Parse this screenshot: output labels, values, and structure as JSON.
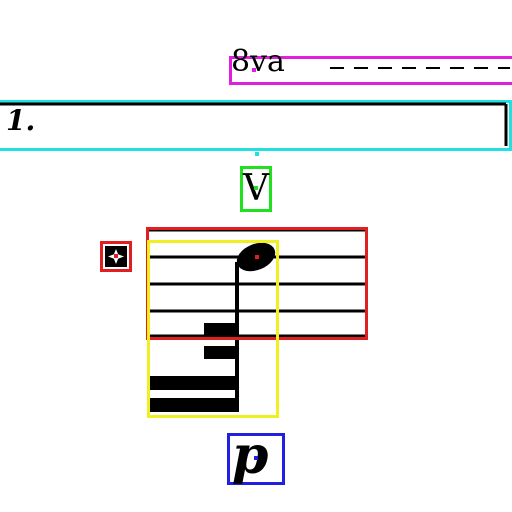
{
  "ottava": {
    "label": "8va",
    "box_color": "#e020e0",
    "marker_color": "#e020e0"
  },
  "volta": {
    "label": "1.",
    "box_color": "#20e0e0",
    "marker_color": "#20e0e0"
  },
  "bowing": {
    "symbol": "V",
    "name": "up-bow",
    "box_color": "#20e020",
    "marker_color": "#20e020"
  },
  "notehead": {
    "box_color": "#e02020",
    "marker_color": "#e02020"
  },
  "accidental": {
    "name": "double-sharp",
    "box_color": "#e02020",
    "marker_color": "#e02020"
  },
  "flag": {
    "name": "sixteenth-flag-up",
    "box_color": "#f0f020"
  },
  "dynamic": {
    "label": "p",
    "box_color": "#2020e0",
    "marker_color": "#2020e0"
  },
  "ink_color": "#000000"
}
